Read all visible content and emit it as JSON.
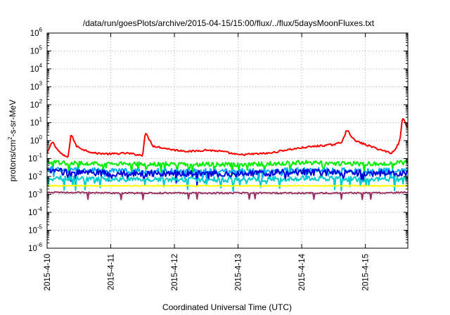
{
  "chart_data": {
    "type": "line",
    "title": "/data/run/goesPlots/archive/2015-04-15/15:00/flux/../flux/5daysMoonFluxes.txt",
    "xlabel": "Coordinated Universal Time (UTC)",
    "ylabel": {
      "prefix": "protons/cm",
      "sup": "2",
      "suffix": "-s-sr-MeV"
    },
    "scale": {
      "y": "log"
    },
    "ylim": [
      1e-06,
      1000000.0
    ],
    "xlim": [
      "2015-04-10 00:00",
      "2015-04-15 16:00"
    ],
    "y_ticks": [
      {
        "value": 1e-06,
        "base": "10",
        "exp": "-6"
      },
      {
        "value": 1e-05,
        "base": "10",
        "exp": "-5"
      },
      {
        "value": 0.0001,
        "base": "10",
        "exp": "-4"
      },
      {
        "value": 0.001,
        "base": "10",
        "exp": "-3"
      },
      {
        "value": 0.01,
        "base": "10",
        "exp": "-2"
      },
      {
        "value": 0.1,
        "base": "10",
        "exp": "-1"
      },
      {
        "value": 1,
        "base": "10",
        "exp": "0"
      },
      {
        "value": 10,
        "base": "10",
        "exp": "1"
      },
      {
        "value": 100,
        "base": "10",
        "exp": "2"
      },
      {
        "value": 1000,
        "base": "10",
        "exp": "3"
      },
      {
        "value": 10000,
        "base": "10",
        "exp": "4"
      },
      {
        "value": 100000,
        "base": "10",
        "exp": "5"
      },
      {
        "value": 1000000,
        "base": "10",
        "exp": "6"
      }
    ],
    "x_ticks": [
      "2015-4-10",
      "2015-4-11",
      "2015-4-12",
      "2015-4-13",
      "2015-4-14",
      "2015-4-15"
    ],
    "grid": true,
    "series": [
      {
        "color": "#ff0000",
        "x": [
          "2015-04-10 00:00",
          "2015-04-10 02:00",
          "2015-04-10 04:00",
          "2015-04-10 06:00",
          "2015-04-10 08:00",
          "2015-04-10 09:00",
          "2015-04-10 11:00",
          "2015-04-10 14:00",
          "2015-04-10 18:00",
          "2015-04-11 00:00",
          "2015-04-11 06:00",
          "2015-04-11 12:00",
          "2015-04-11 13:00",
          "2015-04-11 16:00",
          "2015-04-12 00:00",
          "2015-04-12 06:00",
          "2015-04-12 12:00",
          "2015-04-12 18:00",
          "2015-04-13 00:00",
          "2015-04-13 06:00",
          "2015-04-13 12:00",
          "2015-04-13 18:00",
          "2015-04-14 00:00",
          "2015-04-14 06:00",
          "2015-04-14 12:00",
          "2015-04-14 15:00",
          "2015-04-14 17:00",
          "2015-04-14 20:00",
          "2015-04-15 00:00",
          "2015-04-15 06:00",
          "2015-04-15 10:00",
          "2015-04-15 12:00",
          "2015-04-15 13:00",
          "2015-04-15 14:00",
          "2015-04-15 16:00"
        ],
        "y": [
          0.2,
          0.9,
          0.3,
          0.15,
          0.12,
          2.5,
          0.5,
          0.3,
          0.2,
          0.18,
          0.2,
          0.15,
          2.8,
          0.5,
          0.3,
          0.25,
          0.3,
          0.25,
          0.16,
          0.18,
          0.2,
          0.3,
          0.4,
          0.5,
          0.6,
          0.8,
          4.0,
          1.0,
          0.6,
          0.3,
          0.2,
          0.5,
          1.0,
          20,
          5.0
        ]
      },
      {
        "color": "#00ee00",
        "x": [
          "2015-04-10 00:00",
          "2015-04-11 00:00",
          "2015-04-12 00:00",
          "2015-04-13 00:00",
          "2015-04-14 00:00",
          "2015-04-15 00:00",
          "2015-04-15 16:00"
        ],
        "y": [
          0.06,
          0.05,
          0.05,
          0.045,
          0.06,
          0.05,
          0.06
        ]
      },
      {
        "color": "#00aaff",
        "x": [
          "2015-04-10 00:00",
          "2015-04-11 00:00",
          "2015-04-12 00:00",
          "2015-04-13 00:00",
          "2015-04-14 00:00",
          "2015-04-15 00:00",
          "2015-04-15 16:00"
        ],
        "y": [
          0.025,
          0.02,
          0.02,
          0.018,
          0.022,
          0.02,
          0.022
        ]
      },
      {
        "color": "#0000dd",
        "x": [
          "2015-04-10 00:00",
          "2015-04-11 00:00",
          "2015-04-12 00:00",
          "2015-04-13 00:00",
          "2015-04-14 00:00",
          "2015-04-15 00:00",
          "2015-04-15 16:00"
        ],
        "y": [
          0.02,
          0.015,
          0.015,
          0.014,
          0.018,
          0.015,
          0.016
        ]
      },
      {
        "color": "#00cccc",
        "x": [
          "2015-04-10 00:00",
          "2015-04-11 00:00",
          "2015-04-12 00:00",
          "2015-04-13 00:00",
          "2015-04-14 00:00",
          "2015-04-15 00:00",
          "2015-04-15 16:00"
        ],
        "y": [
          0.008,
          0.007,
          0.007,
          0.0065,
          0.008,
          0.007,
          0.007
        ]
      },
      {
        "color": "#ffff00",
        "x": [
          "2015-04-10 00:00",
          "2015-04-11 00:00",
          "2015-04-12 00:00",
          "2015-04-13 00:00",
          "2015-04-14 00:00",
          "2015-04-15 00:00",
          "2015-04-15 16:00"
        ],
        "y": [
          0.003,
          0.003,
          0.003,
          0.003,
          0.003,
          0.003,
          0.003
        ]
      },
      {
        "color": "#993366",
        "x": [
          "2015-04-10 00:00",
          "2015-04-11 00:00",
          "2015-04-12 00:00",
          "2015-04-13 00:00",
          "2015-04-14 00:00",
          "2015-04-15 00:00",
          "2015-04-15 16:00"
        ],
        "y": [
          0.0013,
          0.0012,
          0.0012,
          0.0012,
          0.0012,
          0.0012,
          0.0013
        ]
      }
    ]
  }
}
